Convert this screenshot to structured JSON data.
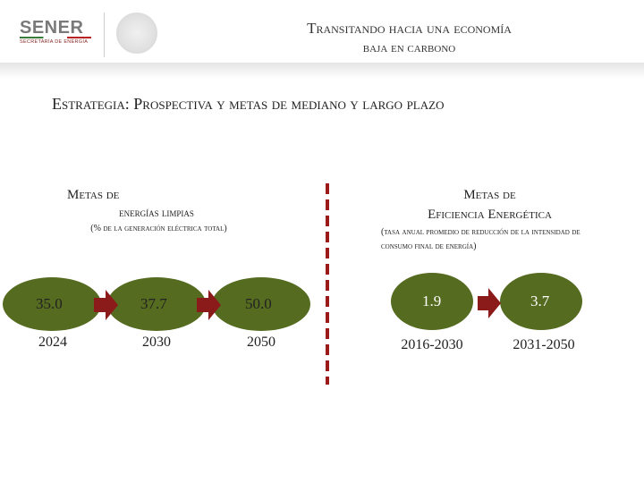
{
  "header": {
    "logo": "SENER",
    "logo_subtitle": "SECRETARÍA DE ENERGÍA",
    "title": [
      "Transitando hacia una economía",
      "baja en carbono"
    ]
  },
  "section": {
    "label": "Estrategia:",
    "text": "Prospectiva y metas de mediano y largo plazo"
  },
  "left": {
    "heading": [
      "Metas de",
      "energías limpias"
    ],
    "note": "(% de la generación eléctrica total)",
    "values": [
      "35.0",
      "37.7",
      "50.0"
    ],
    "years": [
      "2024",
      "2030",
      "2050"
    ]
  },
  "right": {
    "heading": [
      "Metas de",
      "Eficiencia Energética"
    ],
    "note": "(tasa anual promedio de reducción de la intensidad de consumo final de energía)",
    "values": [
      "1.9",
      "3.7"
    ],
    "periods": [
      "2016-2030",
      "2031-2050"
    ]
  }
}
